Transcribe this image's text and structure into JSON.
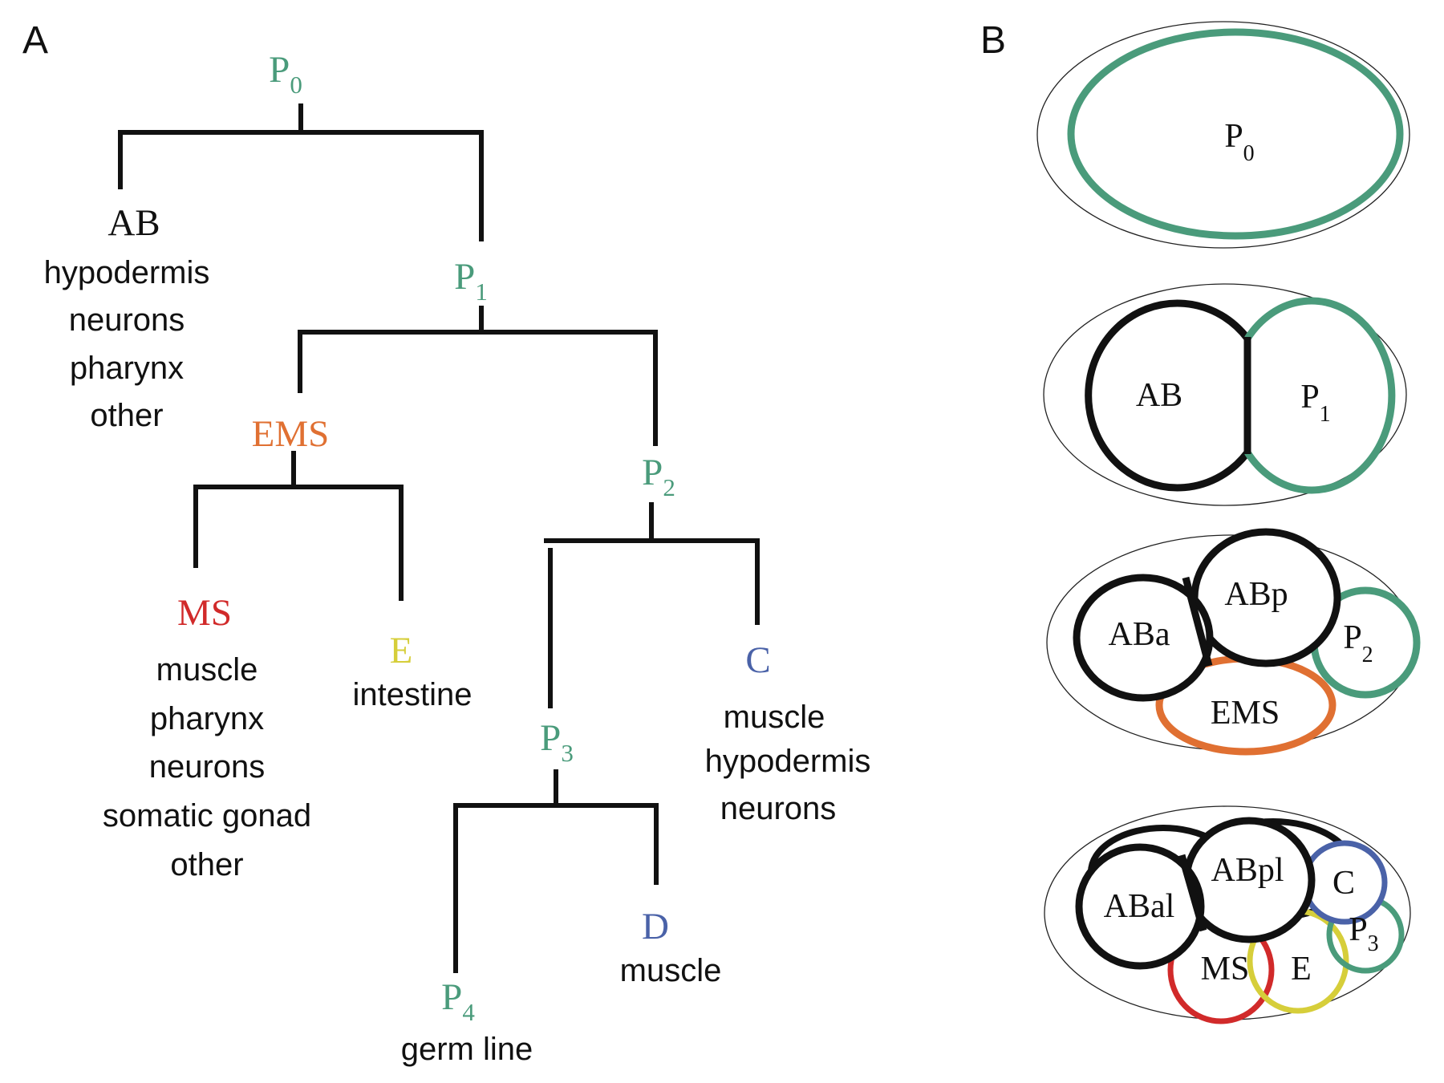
{
  "panels": {
    "a": "A",
    "b": "B"
  },
  "colors": {
    "black": "#111111",
    "green": "#4a9b7b",
    "orange": "#e07032",
    "red": "#d12a2a",
    "yellow": "#d6ce3a",
    "blue": "#4a62a8"
  },
  "tree": {
    "p0": {
      "base": "P",
      "sub": "0"
    },
    "ab": {
      "name": "AB",
      "fates": [
        "hypodermis",
        "neurons",
        "pharynx",
        "other"
      ]
    },
    "p1": {
      "base": "P",
      "sub": "1"
    },
    "ems": {
      "name": "EMS"
    },
    "p2": {
      "base": "P",
      "sub": "2"
    },
    "ms": {
      "name": "MS",
      "fates": [
        "muscle",
        "pharynx",
        "neurons",
        "somatic gonad",
        "other"
      ]
    },
    "e": {
      "name": "E",
      "fates": [
        "intestine"
      ]
    },
    "p3": {
      "base": "P",
      "sub": "3"
    },
    "c": {
      "name": "C",
      "fates": [
        "muscle",
        "hypodermis",
        "neurons"
      ]
    },
    "d": {
      "name": "D",
      "fates": [
        "muscle"
      ]
    },
    "p4": {
      "base": "P",
      "sub": "4",
      "fates": [
        "germ line"
      ]
    }
  },
  "embryos": {
    "one_cell": {
      "p0": {
        "base": "P",
        "sub": "0"
      }
    },
    "two_cell": {
      "ab": "AB",
      "p1": {
        "base": "P",
        "sub": "1"
      }
    },
    "four_cell": {
      "aba": "ABa",
      "abp": "ABp",
      "p2": {
        "base": "P",
        "sub": "2"
      },
      "ems": "EMS"
    },
    "eight_cell": {
      "abal": "ABal",
      "abpl": "ABpl",
      "c": "C",
      "p3": {
        "base": "P",
        "sub": "3"
      },
      "ms": "MS",
      "e": "E"
    }
  }
}
